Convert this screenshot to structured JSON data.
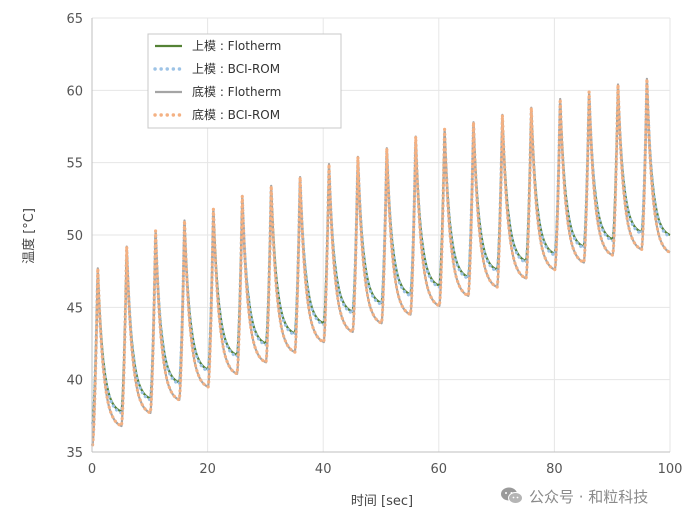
{
  "watermark": {
    "text": "公众号 · 和粒科技",
    "icon": "wechat-icon"
  },
  "chart_data": {
    "type": "line",
    "title": "",
    "xlabel": "时间 [sec]",
    "ylabel": "温度 [°C]",
    "xlim": [
      0,
      100
    ],
    "ylim": [
      35,
      65
    ],
    "xticks": [
      0,
      20,
      40,
      60,
      80,
      100
    ],
    "yticks": [
      35,
      40,
      45,
      50,
      55,
      60,
      65
    ],
    "grid": true,
    "legend_position": "top-left",
    "cycle_period_sec": 5,
    "peak_times_sec": [
      1,
      6,
      11,
      16,
      21,
      26,
      31,
      36,
      41,
      46,
      51,
      56,
      61,
      66,
      71,
      76,
      81,
      86,
      91,
      96
    ],
    "series": [
      {
        "name": "上模 : Flotherm",
        "color": "#548235",
        "style": "solid",
        "start": 37.0,
        "peaks": [
          47.5,
          49.0,
          50.1,
          50.8,
          51.6,
          52.5,
          53.2,
          53.8,
          54.6,
          55.2,
          55.8,
          56.5,
          57.1,
          57.6,
          58.1,
          58.6,
          59.2,
          59.7,
          60.1,
          60.5
        ],
        "valleys": [
          37.8,
          38.7,
          39.8,
          40.7,
          41.7,
          42.5,
          43.2,
          43.9,
          44.7,
          45.3,
          45.9,
          46.5,
          47.1,
          47.6,
          48.2,
          48.7,
          49.2,
          49.7,
          50.2,
          50.0
        ]
      },
      {
        "name": "上模 : BCI-ROM",
        "color": "#9DC3E6",
        "style": "dotted",
        "start": 37.0,
        "peaks": [
          47.4,
          48.9,
          50.0,
          50.7,
          51.5,
          52.4,
          53.1,
          53.7,
          54.5,
          55.1,
          55.7,
          56.4,
          57.0,
          57.5,
          58.0,
          58.5,
          59.1,
          59.6,
          60.0,
          60.4
        ],
        "valleys": [
          37.7,
          38.6,
          39.7,
          40.6,
          41.6,
          42.4,
          43.1,
          43.8,
          44.6,
          45.2,
          45.8,
          46.4,
          47.0,
          47.5,
          48.1,
          48.6,
          49.1,
          49.6,
          50.1,
          49.9
        ]
      },
      {
        "name": "底模 : Flotherm",
        "color": "#A5A5A5",
        "style": "solid",
        "start": 35.5,
        "peaks": [
          47.7,
          49.2,
          50.3,
          51.0,
          51.8,
          52.7,
          53.4,
          54.0,
          54.9,
          55.4,
          56.0,
          56.8,
          57.3,
          57.8,
          58.3,
          58.8,
          59.4,
          59.9,
          60.4,
          60.8
        ],
        "valleys": [
          36.8,
          37.7,
          38.6,
          39.5,
          40.4,
          41.2,
          41.9,
          42.6,
          43.3,
          43.9,
          44.5,
          45.1,
          45.8,
          46.4,
          47.0,
          47.6,
          48.1,
          48.6,
          49.0,
          48.8
        ]
      },
      {
        "name": "底模 : BCI-ROM",
        "color": "#F4B183",
        "style": "dotted",
        "start": 35.5,
        "peaks": [
          47.7,
          49.2,
          50.3,
          51.0,
          51.8,
          52.7,
          53.4,
          54.0,
          54.9,
          55.4,
          56.0,
          56.8,
          57.3,
          57.8,
          58.3,
          58.8,
          59.4,
          59.9,
          60.4,
          60.8
        ],
        "valleys": [
          36.8,
          37.7,
          38.6,
          39.5,
          40.4,
          41.2,
          41.9,
          42.6,
          43.3,
          43.9,
          44.5,
          45.1,
          45.8,
          46.4,
          47.0,
          47.6,
          48.1,
          48.6,
          49.0,
          48.8
        ]
      }
    ]
  }
}
